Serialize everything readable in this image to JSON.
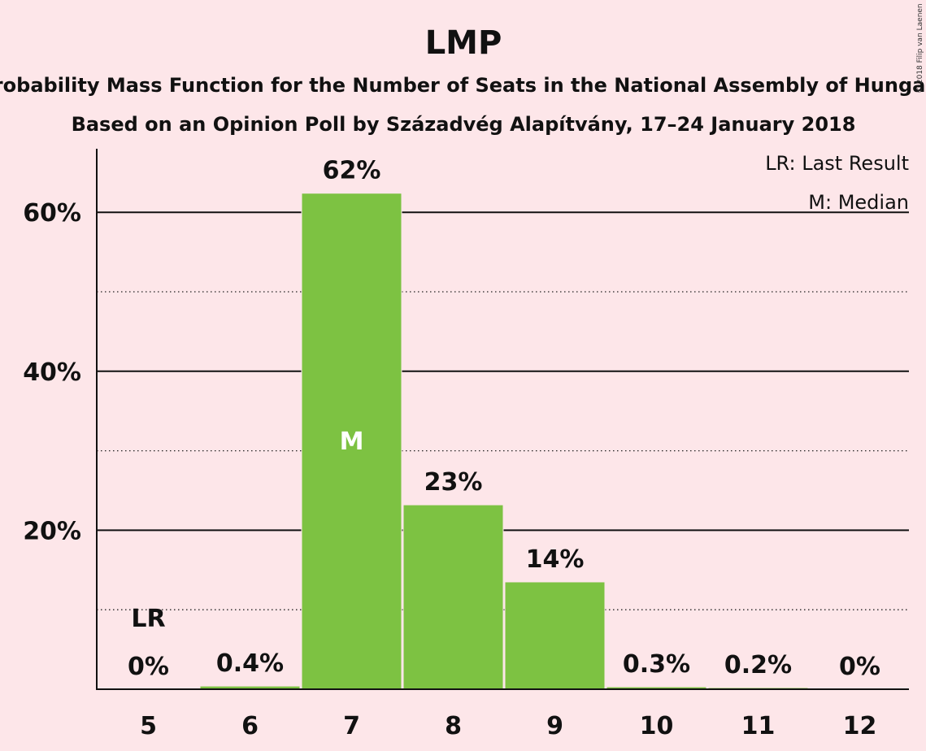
{
  "chart_data": {
    "type": "bar",
    "title": "LMP",
    "subtitle": "Probability Mass Function for the Number of Seats in the National Assembly of Hungary",
    "subtitle2": "Based on an Opinion Poll by Századvég Alapítvány, 17–24 January 2018",
    "categories": [
      "5",
      "6",
      "7",
      "8",
      "9",
      "10",
      "11",
      "12"
    ],
    "values": [
      0,
      0.4,
      62.4,
      23.2,
      13.5,
      0.3,
      0.2,
      0
    ],
    "value_labels": [
      "0%",
      "0.4%",
      "62%",
      "23%",
      "14%",
      "0.3%",
      "0.2%",
      "0%"
    ],
    "ylim": [
      0,
      68
    ],
    "y_major_ticks": [
      20,
      40,
      60
    ],
    "y_major_tick_labels": [
      "20%",
      "40%",
      "60%"
    ],
    "y_minor_ticks": [
      10,
      30,
      50
    ],
    "grid": true,
    "bar_color": "#7dc242",
    "last_result": {
      "category": "5",
      "label": "LR"
    },
    "median": {
      "category": "7",
      "label": "M"
    },
    "legend": {
      "placement": "top-right",
      "entries": [
        "LR: Last Result",
        "M: Median"
      ]
    },
    "copyright": "© 2018 Filip van Laenen"
  }
}
